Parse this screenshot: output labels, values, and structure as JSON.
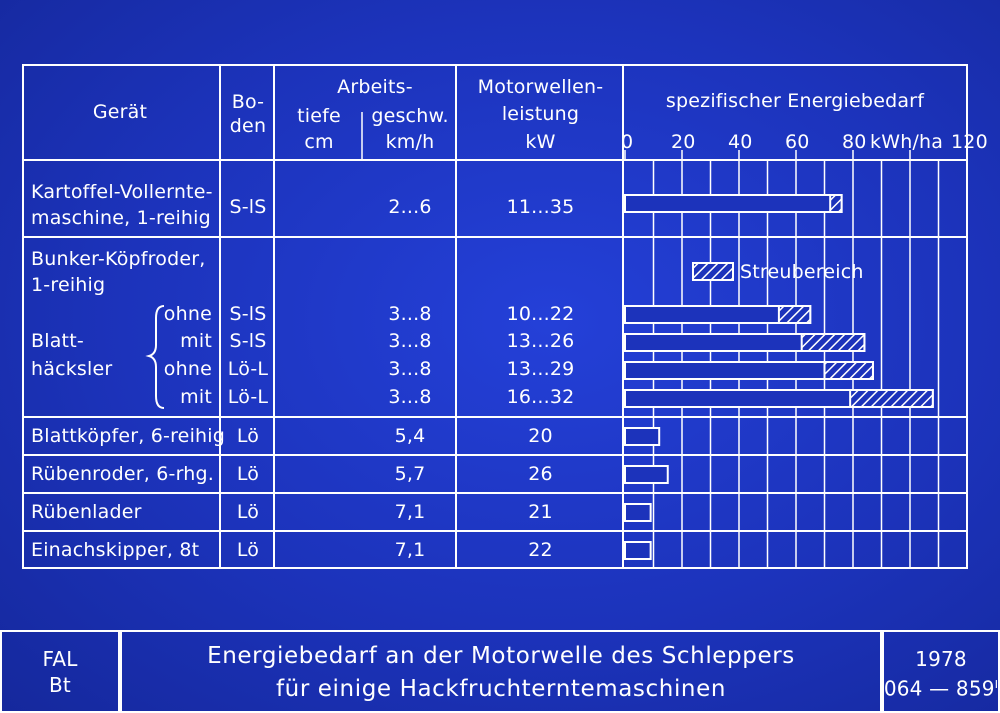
{
  "header": {
    "geraet": "Gerät",
    "boden_1": "Bo-",
    "boden_2": "den",
    "arbeits": "Arbeits-",
    "tiefe": "tiefe",
    "tiefe_unit": "cm",
    "geschw": "geschw.",
    "geschw_unit": "km/h",
    "motor_1": "Motorwellen-",
    "motor_2": "leistung",
    "motor_unit": "kW",
    "energie": "spezifischer Energiebedarf"
  },
  "rows": [
    {
      "label1": "Kartoffel-Vollernte-",
      "label2": "maschine, 1-reihig",
      "boden": "S-lS",
      "geschw": "2...6",
      "leistung": "11...35"
    },
    {
      "label1": "Bunker-Köpfroder,",
      "label2": "1-reihig"
    },
    {
      "bracket_word": "ohne",
      "boden": "S-lS",
      "geschw": "3...8",
      "leistung": "10...22"
    },
    {
      "bracket_word": "mit",
      "boden": "S-lS",
      "geschw": "3...8",
      "leistung": "13...26"
    },
    {
      "bracket_word": "ohne",
      "boden": "Lö-L",
      "geschw": "3...8",
      "leistung": "13...29"
    },
    {
      "bracket_word": "mit",
      "boden": "Lö-L",
      "geschw": "3...8",
      "leistung": "16...32"
    },
    {
      "label1": "Blattköpfer, 6-reihig",
      "boden": "Lö",
      "geschw": "5,4",
      "leistung": "20"
    },
    {
      "label1": "Rübenroder, 6-rhg.",
      "boden": "Lö",
      "geschw": "5,7",
      "leistung": "26"
    },
    {
      "label1": "Rübenlader",
      "boden": "Lö",
      "geschw": "7,1",
      "leistung": "21"
    },
    {
      "label1": "Einachskipper, 8t",
      "boden": "Lö",
      "geschw": "7,1",
      "leistung": "22"
    }
  ],
  "blatt_label_1": "Blatt-",
  "blatt_label_2": "häcksler",
  "legend_label": "Streubereich",
  "chart_data": {
    "type": "bar",
    "unit": "kWh/ha",
    "xlim": [
      0,
      120
    ],
    "ticks": [
      "0",
      "20",
      "40",
      "60",
      "80",
      "kWh/ha",
      "120"
    ],
    "tick_values": [
      0,
      20,
      40,
      60,
      80,
      null,
      120
    ],
    "grid": true,
    "legend": "Streubereich (hatched range)",
    "bars": [
      {
        "row": 0,
        "solid": 72,
        "max": 76
      },
      {
        "row": 2,
        "solid": 54,
        "max": 65
      },
      {
        "row": 3,
        "solid": 62,
        "max": 84
      },
      {
        "row": 4,
        "solid": 70,
        "max": 87
      },
      {
        "row": 5,
        "solid": 79,
        "max": 108
      },
      {
        "row": 6,
        "solid": 12,
        "max": 12
      },
      {
        "row": 7,
        "solid": 15,
        "max": 15
      },
      {
        "row": 8,
        "solid": 9,
        "max": 9
      },
      {
        "row": 9,
        "solid": 9,
        "max": 9
      }
    ]
  },
  "footer": {
    "left1": "FAL",
    "left2": "Bt",
    "title1": "Energiebedarf an der Motorwelle des Schleppers",
    "title2": "für einige Hackfruchterntemaschinen",
    "year": "1978",
    "code": "064 — 859",
    "code_sup": "I"
  }
}
